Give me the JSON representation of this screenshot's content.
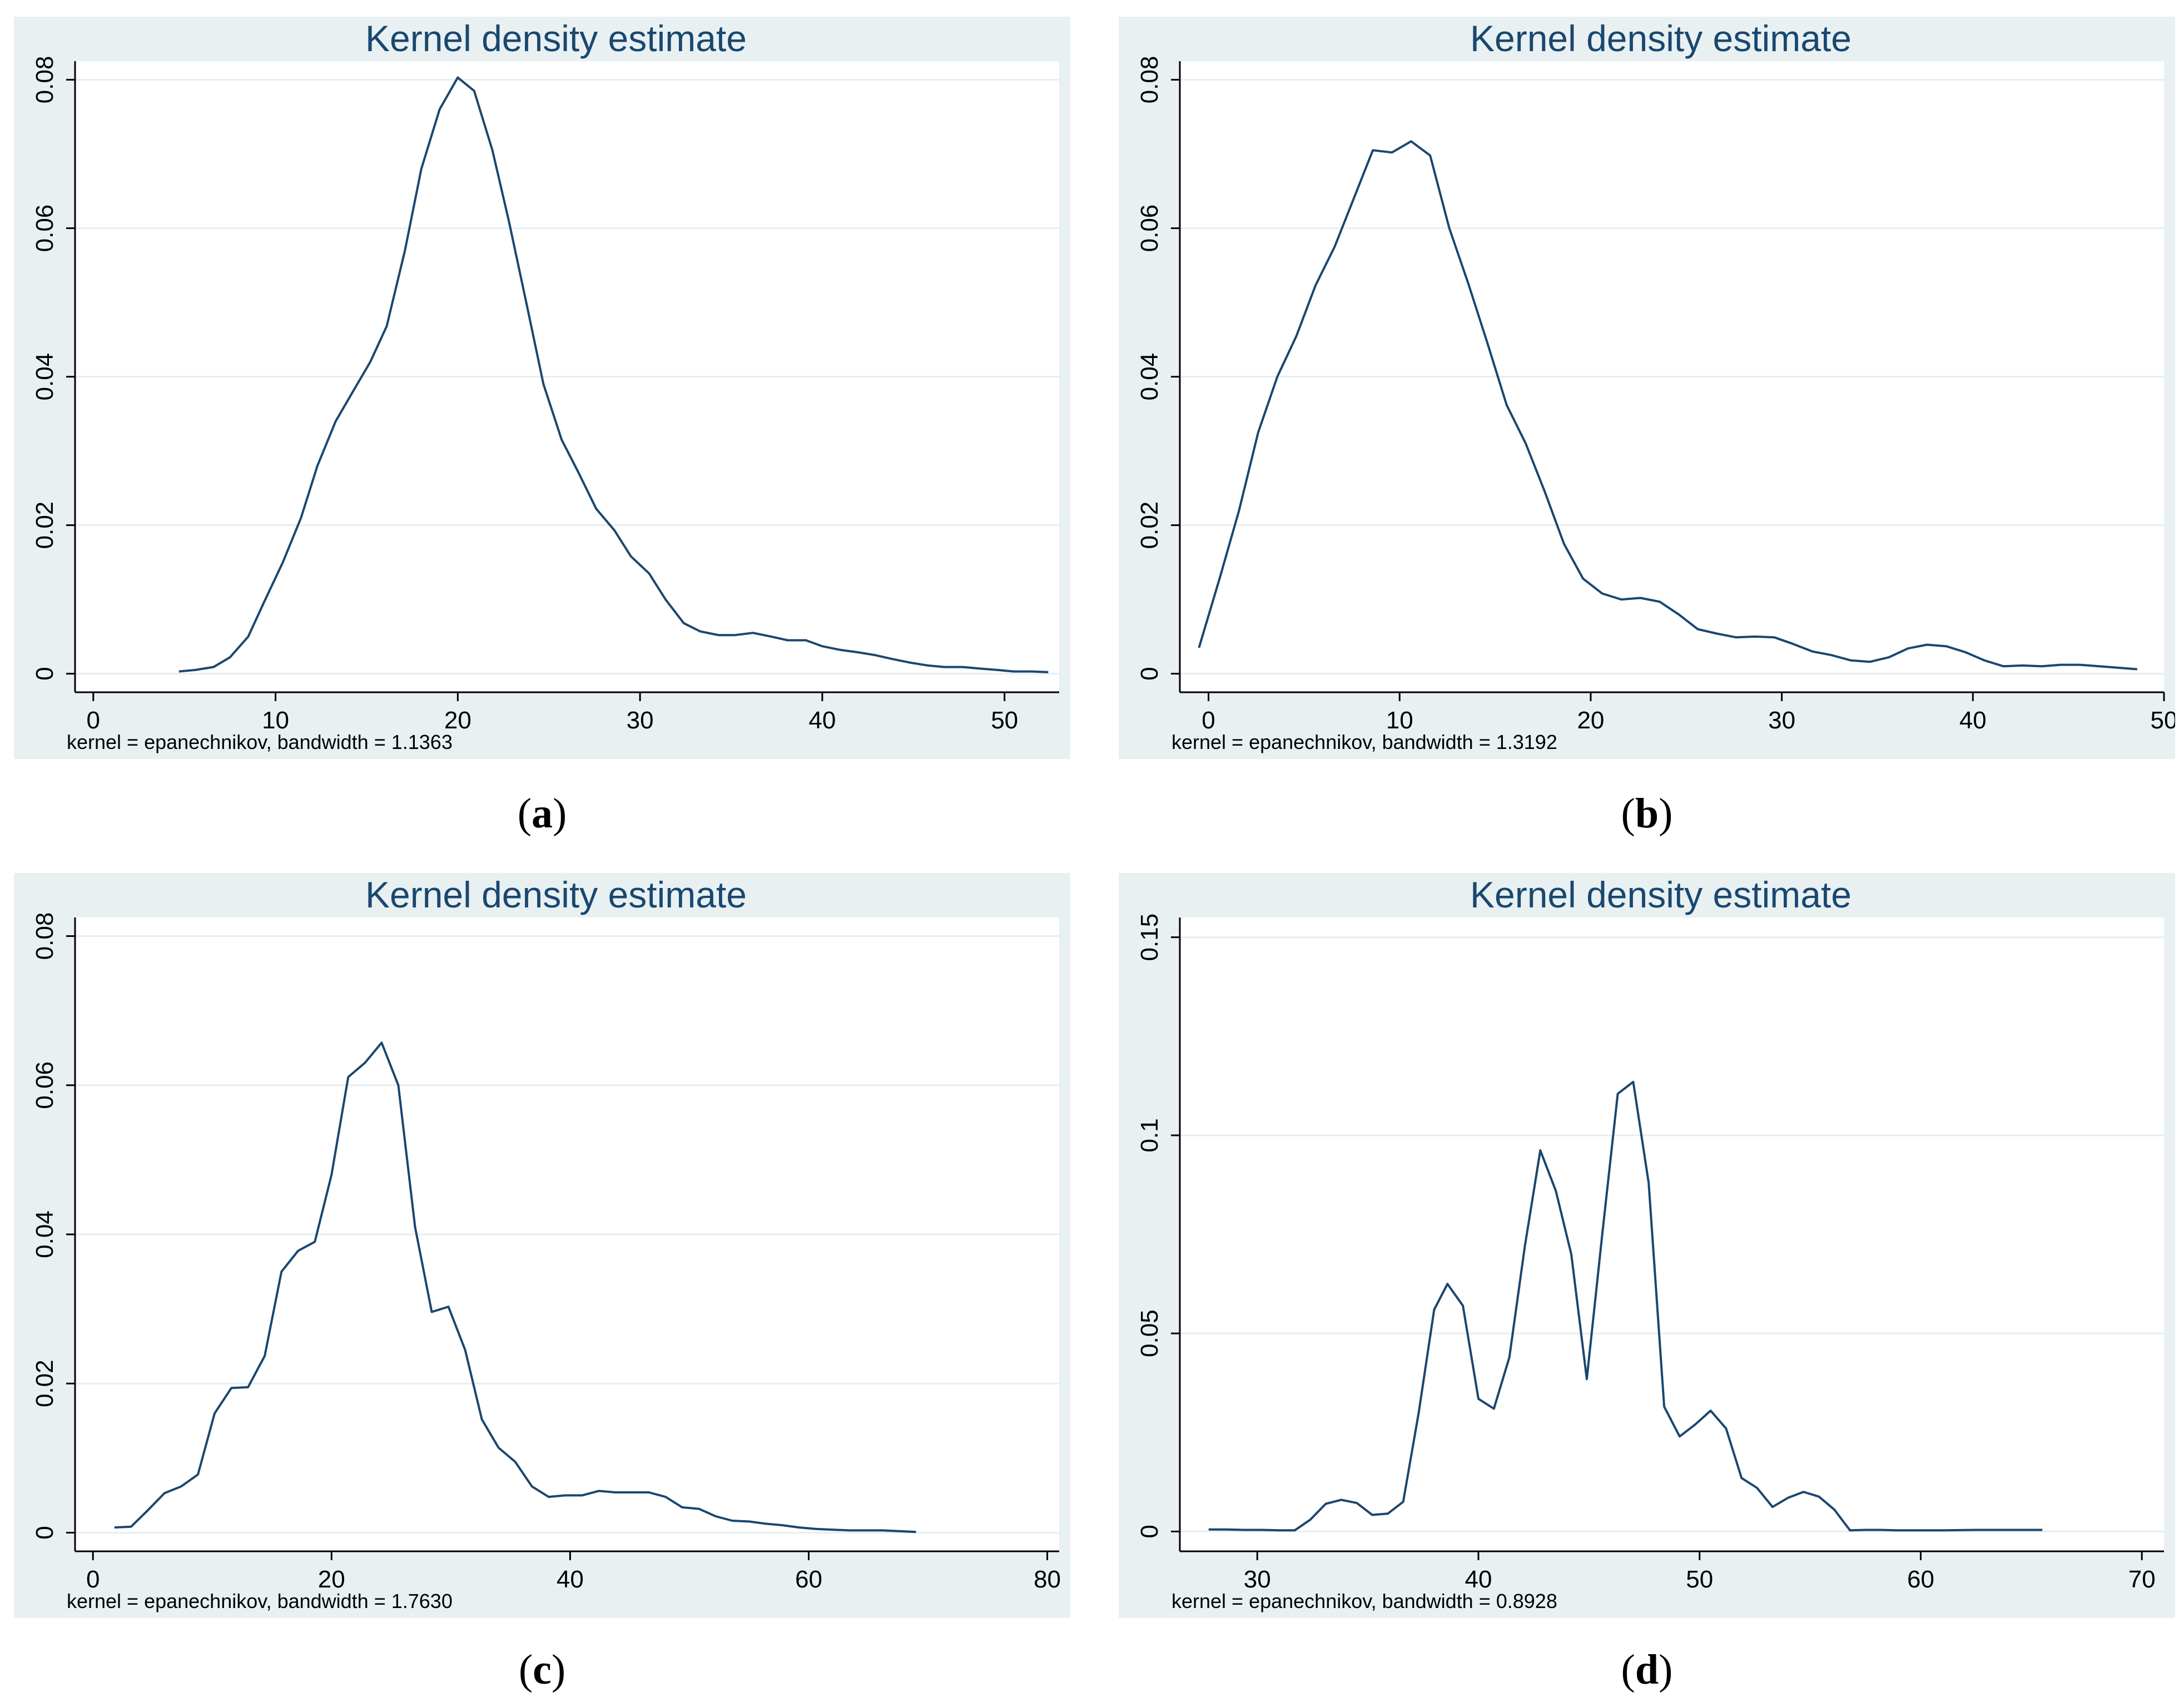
{
  "chart_data": [
    {
      "type": "line",
      "panel_label": "a",
      "title": "Kernel density estimate",
      "note": "kernel = epanechnikov, bandwidth = 1.1363",
      "xlabel": "",
      "ylabel": "",
      "xlim": [
        -1,
        53
      ],
      "ylim": [
        -0.0025,
        0.0825
      ],
      "xticks": [
        0,
        10,
        20,
        30,
        40,
        50
      ],
      "yticks": [
        0,
        0.02,
        0.04,
        0.06,
        0.08
      ],
      "ytick_labels": [
        "0",
        "0.02",
        "0.04",
        "0.06",
        "0.08"
      ],
      "series": [
        {
          "name": "density",
          "x": [
            4.7,
            5.6,
            6.6,
            7.5,
            8.5,
            9.4,
            10.4,
            11.4,
            12.3,
            13.3,
            14.2,
            15.2,
            16.1,
            17.1,
            18.0,
            19.0,
            20.0,
            20.9,
            21.9,
            22.8,
            23.8,
            24.7,
            25.7,
            26.6,
            27.6,
            28.6,
            29.5,
            30.5,
            31.4,
            32.4,
            33.3,
            34.3,
            35.2,
            36.2,
            37.2,
            38.1,
            39.1,
            40.0,
            41.0,
            41.9,
            42.9,
            43.8,
            44.8,
            45.8,
            46.7,
            47.7,
            48.6,
            49.6,
            50.5,
            51.5,
            52.4
          ],
          "y": [
            0.0003,
            0.0005,
            0.0009,
            0.0022,
            0.005,
            0.0098,
            0.015,
            0.021,
            0.028,
            0.034,
            0.0378,
            0.042,
            0.0468,
            0.057,
            0.068,
            0.076,
            0.0803,
            0.0785,
            0.0705,
            0.061,
            0.0495,
            0.039,
            0.0315,
            0.0272,
            0.0222,
            0.0193,
            0.0158,
            0.0135,
            0.01,
            0.0068,
            0.0057,
            0.0052,
            0.0052,
            0.0055,
            0.005,
            0.0045,
            0.0045,
            0.0037,
            0.0032,
            0.0029,
            0.0025,
            0.002,
            0.0015,
            0.0011,
            0.0009,
            0.0009,
            0.0007,
            0.0005,
            0.0003,
            0.0003,
            0.0002
          ]
        }
      ]
    },
    {
      "type": "line",
      "panel_label": "b",
      "title": "Kernel density estimate",
      "note": "kernel = epanechnikov, bandwidth = 1.3192",
      "xlabel": "",
      "ylabel": "",
      "xlim": [
        -1.5,
        50
      ],
      "ylim": [
        -0.0025,
        0.0825
      ],
      "xticks": [
        0,
        10,
        20,
        30,
        40,
        50
      ],
      "yticks": [
        0,
        0.02,
        0.04,
        0.06,
        0.08
      ],
      "ytick_labels": [
        "0",
        "0.02",
        "0.04",
        "0.06",
        "0.08"
      ],
      "series": [
        {
          "name": "density",
          "x": [
            -0.5,
            0.6,
            1.6,
            2.6,
            3.6,
            4.6,
            5.6,
            6.6,
            7.6,
            8.6,
            9.6,
            10.6,
            11.6,
            12.6,
            13.6,
            14.6,
            15.6,
            16.6,
            17.6,
            18.6,
            19.6,
            20.6,
            21.6,
            22.6,
            23.6,
            24.6,
            25.6,
            26.6,
            27.6,
            28.6,
            29.6,
            30.6,
            31.6,
            32.6,
            33.6,
            34.6,
            35.6,
            36.6,
            37.6,
            38.6,
            39.6,
            40.6,
            41.6,
            42.6,
            43.6,
            44.6,
            45.6,
            46.6,
            47.6,
            48.6
          ],
          "y": [
            0.0035,
            0.013,
            0.022,
            0.0325,
            0.04,
            0.0455,
            0.0523,
            0.0575,
            0.064,
            0.0705,
            0.0702,
            0.0717,
            0.0698,
            0.06,
            0.0525,
            0.0445,
            0.0362,
            0.031,
            0.0245,
            0.0175,
            0.0128,
            0.0108,
            0.01,
            0.0102,
            0.0097,
            0.008,
            0.006,
            0.0054,
            0.0049,
            0.005,
            0.0049,
            0.004,
            0.003,
            0.0025,
            0.0018,
            0.0016,
            0.0022,
            0.0034,
            0.0039,
            0.0037,
            0.0029,
            0.0018,
            0.001,
            0.0011,
            0.001,
            0.0012,
            0.0012,
            0.001,
            0.0008,
            0.0006
          ]
        }
      ]
    },
    {
      "type": "line",
      "panel_label": "c",
      "title": "Kernel density estimate",
      "note": "kernel = epanechnikov, bandwidth = 1.7630",
      "xlabel": "",
      "ylabel": "",
      "xlim": [
        -1.5,
        81
      ],
      "ylim": [
        -0.0025,
        0.0825
      ],
      "xticks": [
        0,
        20,
        40,
        60,
        80
      ],
      "yticks": [
        0,
        0.02,
        0.04,
        0.06,
        0.08
      ],
      "ytick_labels": [
        "0",
        "0.02",
        "0.04",
        "0.06",
        "0.08"
      ],
      "series": [
        {
          "name": "density",
          "x": [
            1.8,
            3.2,
            4.6,
            6.0,
            7.4,
            8.8,
            10.2,
            11.6,
            13.0,
            14.4,
            15.8,
            17.2,
            18.6,
            20.0,
            21.4,
            22.8,
            24.2,
            25.6,
            27.0,
            28.4,
            29.8,
            31.2,
            32.6,
            34.0,
            35.4,
            36.8,
            38.2,
            39.6,
            41.0,
            42.4,
            43.8,
            45.2,
            46.6,
            48.0,
            49.4,
            50.8,
            52.2,
            53.6,
            55.0,
            56.4,
            57.8,
            59.2,
            60.6,
            62.0,
            63.4,
            64.8,
            66.2,
            67.6,
            69.0
          ],
          "y": [
            0.0007,
            0.0008,
            0.003,
            0.0053,
            0.0062,
            0.0078,
            0.016,
            0.0194,
            0.0195,
            0.0237,
            0.035,
            0.0378,
            0.039,
            0.048,
            0.0611,
            0.063,
            0.0657,
            0.06,
            0.041,
            0.0296,
            0.0303,
            0.0245,
            0.0152,
            0.0114,
            0.0095,
            0.0062,
            0.0048,
            0.005,
            0.005,
            0.0056,
            0.0054,
            0.0054,
            0.0054,
            0.0048,
            0.0034,
            0.0032,
            0.0022,
            0.0016,
            0.0015,
            0.0012,
            0.001,
            0.0007,
            0.0005,
            0.0004,
            0.0003,
            0.0003,
            0.0003,
            0.0002,
            0.0001
          ]
        }
      ]
    },
    {
      "type": "line",
      "panel_label": "d",
      "title": "Kernel density estimate",
      "note": "kernel = epanechnikov, bandwidth = 0.8928",
      "xlabel": "",
      "ylabel": "",
      "xlim": [
        26.5,
        71
      ],
      "ylim": [
        -0.005,
        0.155
      ],
      "xticks": [
        30,
        40,
        50,
        60,
        70
      ],
      "yticks": [
        0,
        0.05,
        0.1,
        0.15
      ],
      "ytick_labels": [
        "0",
        "0.05",
        "0.1",
        "0.15"
      ],
      "series": [
        {
          "name": "density",
          "x": [
            27.8,
            28.6,
            29.4,
            30.2,
            31.0,
            31.7,
            32.4,
            33.1,
            33.8,
            34.5,
            35.2,
            35.9,
            36.6,
            37.3,
            38.0,
            38.6,
            39.3,
            40.0,
            40.7,
            41.4,
            42.1,
            42.8,
            43.5,
            44.2,
            44.9,
            45.6,
            46.3,
            47.0,
            47.7,
            48.4,
            49.1,
            49.8,
            50.5,
            51.2,
            51.9,
            52.6,
            53.3,
            54.0,
            54.7,
            55.4,
            56.1,
            56.8,
            57.5,
            58.2,
            58.9,
            59.6,
            61.0,
            62.5,
            64.0,
            65.5
          ],
          "y": [
            0.0005,
            0.0005,
            0.0004,
            0.0004,
            0.0003,
            0.0003,
            0.003,
            0.007,
            0.008,
            0.0072,
            0.0042,
            0.0045,
            0.0075,
            0.03,
            0.056,
            0.0625,
            0.057,
            0.0335,
            0.031,
            0.044,
            0.072,
            0.0962,
            0.086,
            0.07,
            0.0385,
            0.075,
            0.1105,
            0.1135,
            0.088,
            0.0315,
            0.024,
            0.027,
            0.0305,
            0.026,
            0.0135,
            0.011,
            0.0062,
            0.0085,
            0.01,
            0.0088,
            0.0055,
            0.0003,
            0.0004,
            0.0004,
            0.0003,
            0.0003,
            0.0003,
            0.0004,
            0.0004,
            0.0004
          ]
        }
      ]
    }
  ]
}
